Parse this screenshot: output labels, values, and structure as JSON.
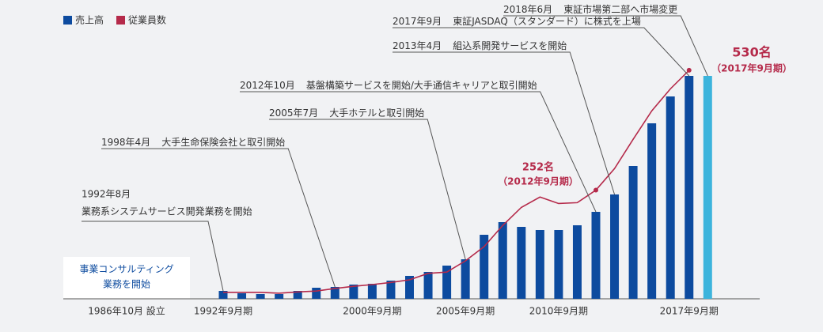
{
  "chart_data": {
    "type": "bar",
    "categories": [
      "1992年9月期",
      null,
      null,
      null,
      null,
      null,
      null,
      null,
      "2000年9月期",
      null,
      null,
      null,
      null,
      "2005年9月期",
      null,
      null,
      null,
      null,
      "2010年9月期",
      null,
      null,
      null,
      null,
      null,
      null,
      "2017年9月期",
      null
    ],
    "series": [
      {
        "name": "売上高",
        "color": "#0d4b9f",
        "highlight_color": "#3cb4dc",
        "values": [
          10,
          7,
          6,
          6,
          10,
          14,
          15,
          18,
          19,
          23,
          29,
          34,
          42,
          50,
          81,
          97,
          91,
          87,
          87,
          93,
          110,
          132,
          168,
          222,
          256,
          282,
          282
        ]
      },
      {
        "name": "従業員数",
        "color": "#b52a4a",
        "type": "line",
        "axis": "y2",
        "values": [
          15,
          15,
          15,
          13,
          16,
          18,
          24,
          29,
          33,
          38,
          44,
          59,
          62,
          88,
          121,
          170,
          212,
          236,
          221,
          223,
          252,
          302,
          370,
          436,
          487,
          530,
          null
        ],
        "value_labels": [
          null,
          null,
          null,
          null,
          null,
          null,
          null,
          null,
          null,
          null,
          null,
          null,
          null,
          null,
          null,
          null,
          null,
          null,
          null,
          null,
          "252名",
          null,
          null,
          null,
          null,
          "530名",
          null
        ],
        "value_notes": [
          null,
          null,
          null,
          null,
          null,
          null,
          null,
          null,
          null,
          null,
          null,
          null,
          null,
          null,
          null,
          null,
          null,
          null,
          null,
          null,
          "（2012年9月期）",
          null,
          null,
          null,
          null,
          "（2017年9月期）",
          null
        ]
      }
    ],
    "ylim": [
      0,
      300
    ],
    "y2lim": [
      0,
      550
    ],
    "annotations": [
      {
        "date": "2018年6月",
        "text": "東証市場第二部へ市場変更"
      },
      {
        "date": "2017年9月",
        "text": "東証JASDAQ（スタンダード）に株式を上場"
      },
      {
        "date": "2013年4月",
        "text": "組込系開発サービスを開始"
      },
      {
        "date": "2012年10月",
        "text": "基盤構築サービスを開始/大手通信キャリアと取引開始"
      },
      {
        "date": "2005年7月",
        "text": "大手ホテルと取引開始"
      },
      {
        "date": "1998年4月",
        "text": "大手生命保険会社と取引開始"
      },
      {
        "date": "1992年8月",
        "text": "業務系システムサービス開発業務を開始"
      }
    ],
    "start_note": [
      "事業コンサルティング",
      "業務を開始"
    ],
    "founded": "1986年10月 設立"
  }
}
